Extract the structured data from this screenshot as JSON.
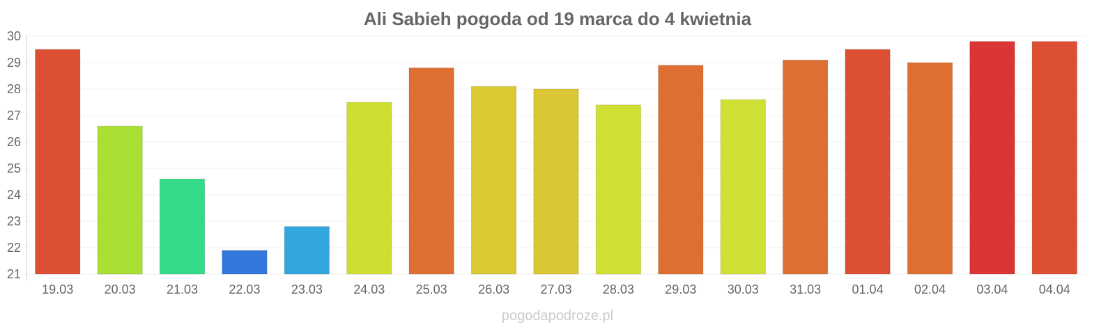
{
  "chart_data": {
    "type": "bar",
    "title": "Ali Sabieh pogoda od 19 marca do 4 kwietnia",
    "xlabel": "",
    "ylabel": "",
    "ylim": [
      21,
      30
    ],
    "yticks": [
      21,
      22,
      23,
      24,
      25,
      26,
      27,
      28,
      29,
      30
    ],
    "grid": true,
    "categories": [
      "19.03",
      "20.03",
      "21.03",
      "22.03",
      "23.03",
      "24.03",
      "25.03",
      "26.03",
      "27.03",
      "28.03",
      "29.03",
      "30.03",
      "31.03",
      "01.04",
      "02.04",
      "03.04",
      "04.04"
    ],
    "values": [
      29.5,
      26.6,
      24.6,
      21.9,
      22.8,
      27.5,
      28.8,
      28.1,
      28.0,
      27.4,
      28.9,
      27.6,
      29.1,
      29.5,
      29.0,
      29.8,
      29.8
    ],
    "colors": [
      "#dd4f33",
      "#aadf33",
      "#33db88",
      "#3377dd",
      "#33a6dd",
      "#d0dd33",
      "#dd6f33",
      "#dbc933",
      "#dbc633",
      "#d0df33",
      "#dd6f33",
      "#d0df33",
      "#dd6f33",
      "#dd4f33",
      "#dd6f33",
      "#dc3535",
      "#dd4f33"
    ]
  },
  "watermark": "pogodapodroze.pl"
}
